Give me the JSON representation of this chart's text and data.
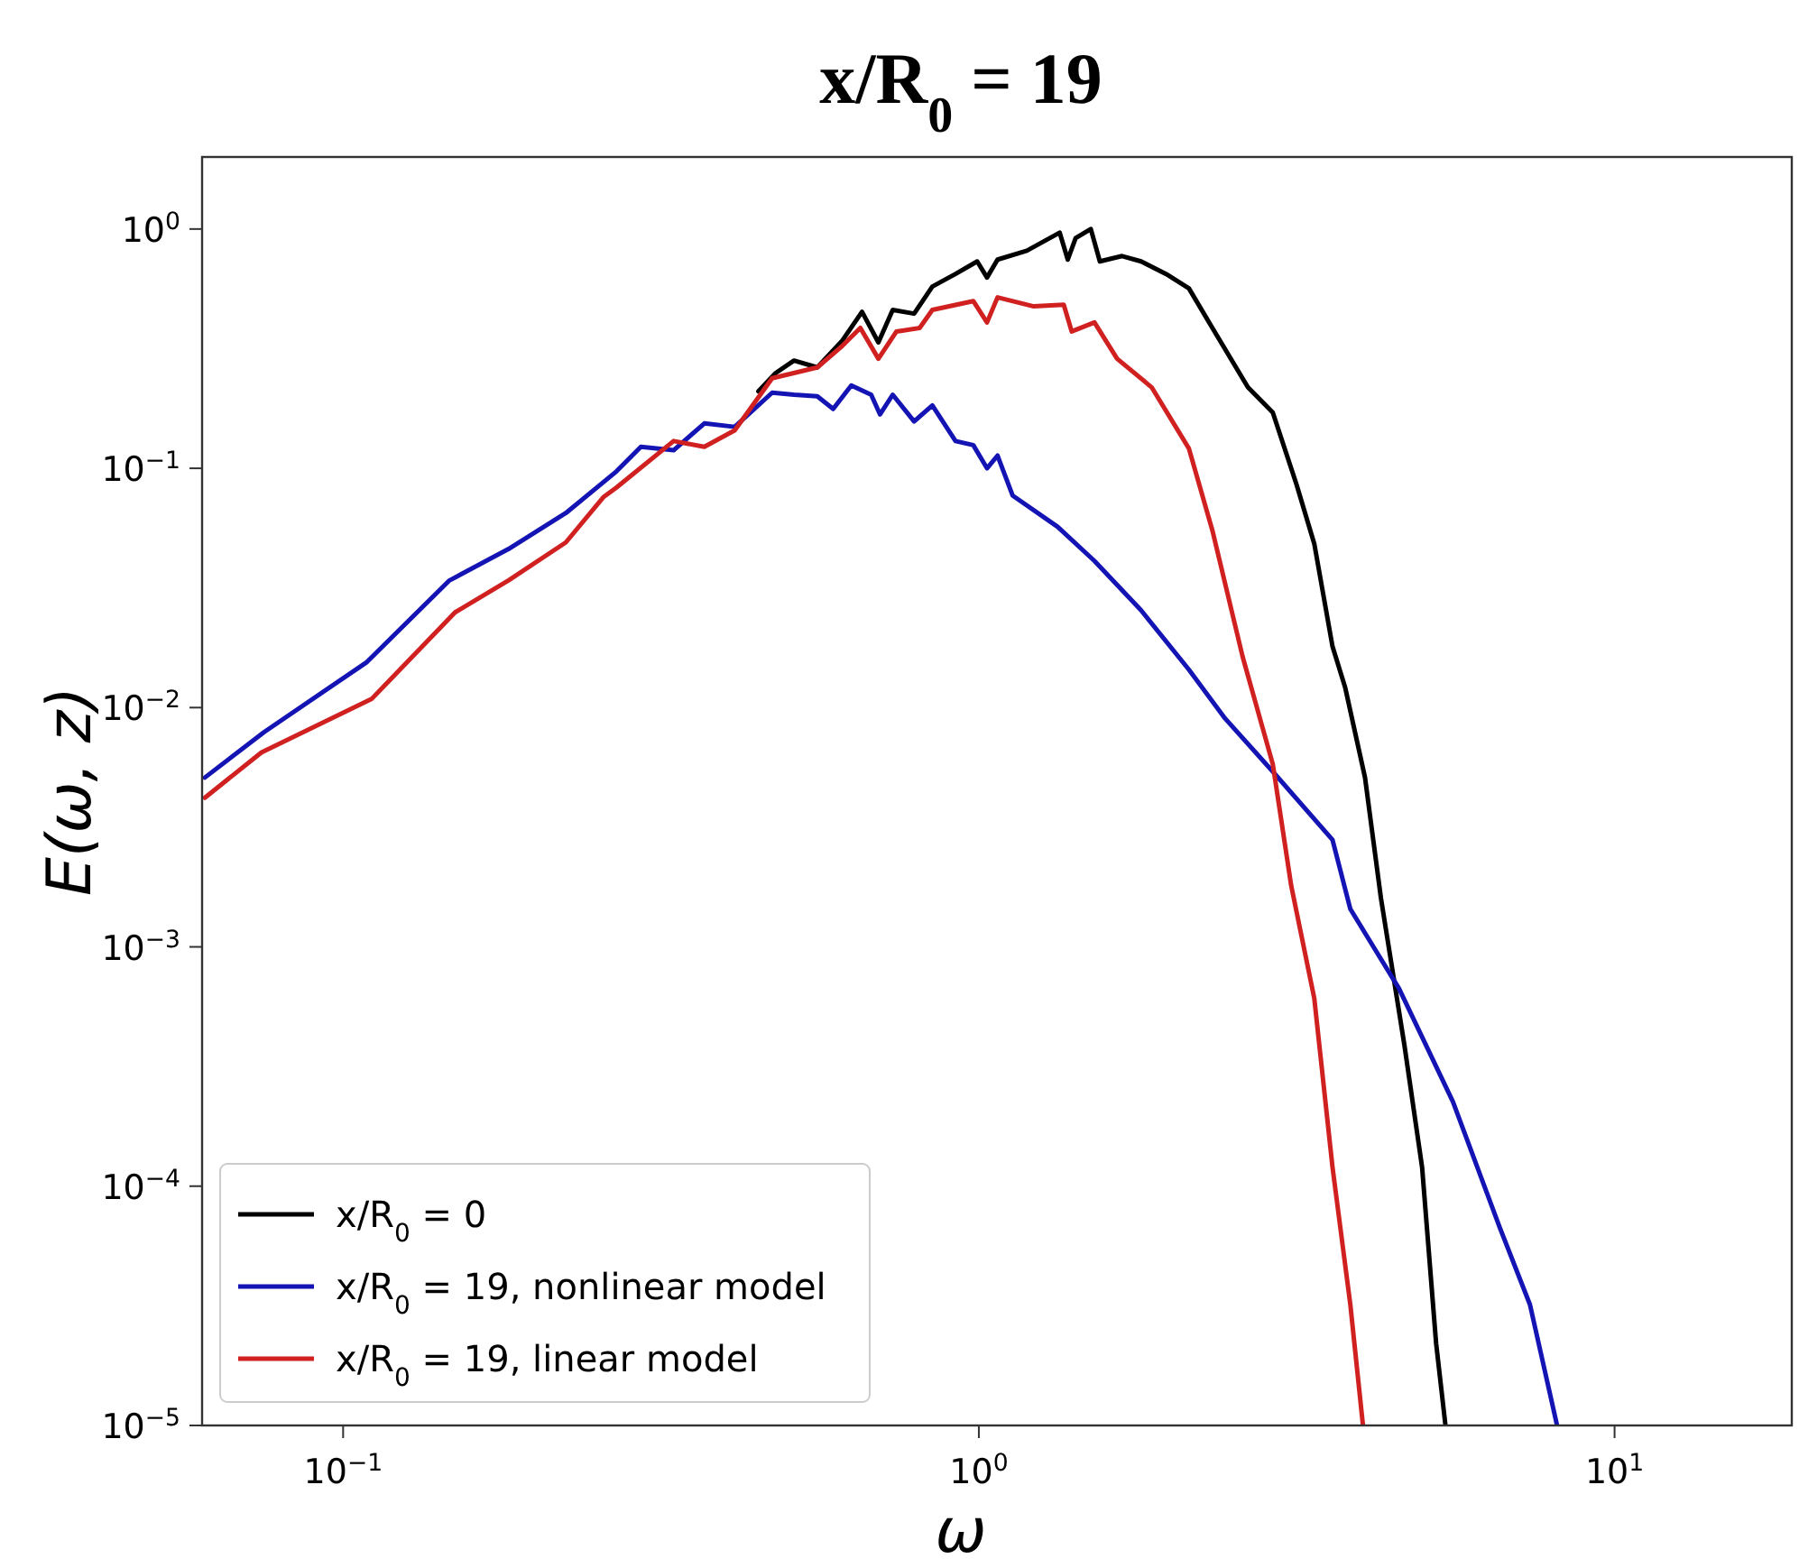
{
  "chart_data": {
    "type": "line",
    "title": "x/R$_{0}$ = 19",
    "xlabel": "ω",
    "ylabel": "E(ω, z)",
    "log": "xy",
    "xlim": [
      0.06,
      19
    ],
    "ylim": [
      1e-05,
      2
    ],
    "xticks": [
      {
        "value": 0.1,
        "label": "10$^{−1}$"
      },
      {
        "value": 1,
        "label": "10$^{0}$"
      },
      {
        "value": 10,
        "label": "10$^{1}$"
      }
    ],
    "yticks": [
      {
        "value": 1e-05,
        "label": "10$^{−5}$"
      },
      {
        "value": 0.0001,
        "label": "10$^{−4}$"
      },
      {
        "value": 0.001,
        "label": "10$^{−3}$"
      },
      {
        "value": 0.01,
        "label": "10$^{−2}$"
      },
      {
        "value": 0.1,
        "label": "10$^{−1}$"
      },
      {
        "value": 1,
        "label": "10$^{0}$"
      }
    ],
    "grid": false,
    "legend": "bottom left",
    "line_style": "solid",
    "marker": "none",
    "series": [
      {
        "name": "x/R$_{0}$ = 0",
        "color": "#000000",
        "x": [
          0.45,
          0.479,
          0.512,
          0.557,
          0.61,
          0.655,
          0.695,
          0.732,
          0.791,
          0.845,
          0.919,
          0.994,
          1.03,
          1.07,
          1.19,
          1.34,
          1.38,
          1.42,
          1.5,
          1.55,
          1.68,
          1.8,
          1.97,
          2.14,
          2.33,
          2.65,
          2.9,
          3.16,
          3.37,
          3.6,
          3.77,
          4.05,
          4.29,
          4.67,
          4.98,
          5.24,
          5.42
        ],
        "values": [
          0.21,
          0.25,
          0.282,
          0.264,
          0.342,
          0.451,
          0.336,
          0.459,
          0.443,
          0.575,
          0.649,
          0.732,
          0.627,
          0.745,
          0.812,
          0.966,
          0.745,
          0.917,
          1.0,
          0.732,
          0.771,
          0.732,
          0.649,
          0.565,
          0.386,
          0.218,
          0.171,
          0.0856,
          0.0484,
          0.018,
          0.0121,
          0.0051,
          0.0016,
          0.00039,
          0.00012,
          2.2e-05,
          1e-05
        ]
      },
      {
        "name": "x/R$_{0}$ = 19, nonlinear model",
        "color": "#1414b4",
        "x": [
          0.0606,
          0.0751,
          0.109,
          0.147,
          0.182,
          0.224,
          0.269,
          0.294,
          0.331,
          0.37,
          0.413,
          0.473,
          0.512,
          0.557,
          0.59,
          0.63,
          0.677,
          0.699,
          0.732,
          0.791,
          0.845,
          0.919,
          0.98,
          1.03,
          1.07,
          1.13,
          1.33,
          1.52,
          1.8,
          2.14,
          2.44,
          2.9,
          3.6,
          3.84,
          4.58,
          5.57,
          6.6,
          7.36,
          8.12
        ],
        "values": [
          0.0051,
          0.0079,
          0.0155,
          0.034,
          0.046,
          0.065,
          0.097,
          0.123,
          0.119,
          0.154,
          0.149,
          0.207,
          0.203,
          0.2,
          0.177,
          0.222,
          0.203,
          0.168,
          0.203,
          0.157,
          0.183,
          0.13,
          0.125,
          0.1,
          0.113,
          0.077,
          0.057,
          0.041,
          0.0255,
          0.0144,
          0.009,
          0.0054,
          0.0028,
          0.00144,
          0.00067,
          0.000225,
          6.7e-05,
          3.2e-05,
          1e-05
        ]
      },
      {
        "name": "x/R$_{0}$ = 19, linear model",
        "color": "#d02020",
        "x": [
          0.0606,
          0.0744,
          0.111,
          0.15,
          0.182,
          0.224,
          0.257,
          0.269,
          0.331,
          0.37,
          0.413,
          0.473,
          0.557,
          0.61,
          0.651,
          0.695,
          0.742,
          0.807,
          0.845,
          0.98,
          1.03,
          1.07,
          1.22,
          1.36,
          1.4,
          1.52,
          1.65,
          1.87,
          2.14,
          2.33,
          2.6,
          2.9,
          3.1,
          3.37,
          3.6,
          3.84,
          4.02
        ],
        "values": [
          0.0042,
          0.0065,
          0.0109,
          0.025,
          0.034,
          0.049,
          0.076,
          0.083,
          0.13,
          0.123,
          0.144,
          0.238,
          0.264,
          0.325,
          0.386,
          0.287,
          0.373,
          0.386,
          0.459,
          0.5,
          0.407,
          0.518,
          0.475,
          0.483,
          0.373,
          0.407,
          0.287,
          0.218,
          0.121,
          0.055,
          0.0163,
          0.0058,
          0.0018,
          0.00061,
          0.00012,
          3.2e-05,
          1e-05
        ]
      }
    ]
  }
}
